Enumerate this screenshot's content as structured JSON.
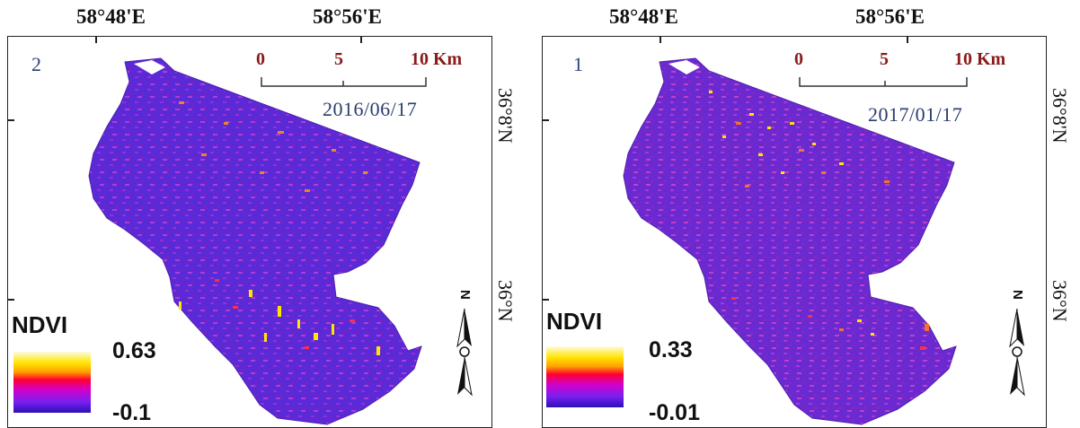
{
  "top_coords": [
    "58°48'E",
    "58°56'E",
    "58°48'E",
    "58°56'E"
  ],
  "lat_labels": [
    "36°8'N",
    "36°N",
    "36°8'N",
    "36°N"
  ],
  "panels": [
    {
      "number": "2",
      "date": "2016/06/17",
      "scale": [
        "0",
        "5",
        "10 Km"
      ],
      "legend_title": "NDVI",
      "legend_max": "0.63",
      "legend_min": "-0.1",
      "north_label": "N"
    },
    {
      "number": "1",
      "date": "2017/01/17",
      "scale": [
        "0",
        "5",
        "10 Km"
      ],
      "legend_title": "NDVI",
      "legend_max": "0.33",
      "legend_min": "-0.01",
      "north_label": "N"
    }
  ],
  "colors": {
    "ramp": [
      "#fffbe0",
      "#ffe600",
      "#ffa000",
      "#ff0030",
      "#d400c8",
      "#7a20f0",
      "#2a10b8"
    ],
    "map_base": "#5a2ad6",
    "scale_text": "#8b1a1a",
    "date_text": "#2a3d6e"
  },
  "icons": [
    "north-arrow-icon"
  ]
}
